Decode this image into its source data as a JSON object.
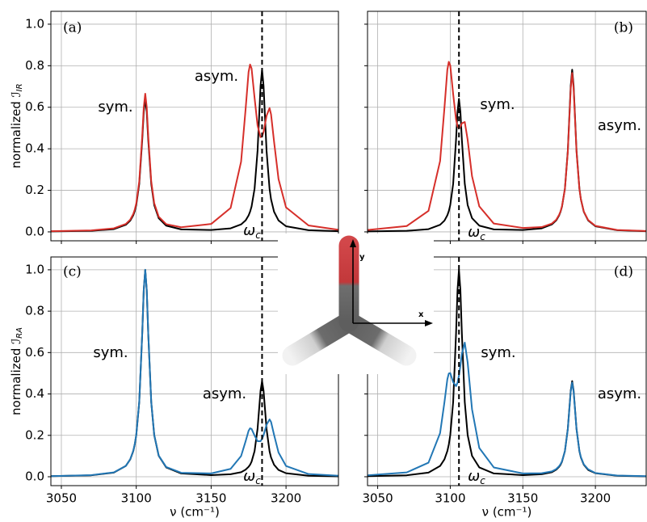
{
  "chart_data": [
    {
      "type": "line",
      "panel_label": "(a)",
      "ylabel": {
        "text": "normalized ℐ",
        "sub": "IR"
      },
      "annotations": [
        {
          "text": "sym."
        },
        {
          "text": "asym."
        },
        {
          "text": "ω",
          "sub": "c"
        }
      ],
      "xlim": [
        3043,
        3235
      ],
      "xticks": [
        3050,
        3100,
        3150,
        3200
      ],
      "xtick_labels": false,
      "ylim": [
        -0.043,
        1.062
      ],
      "yticks": [
        {
          "value": 0,
          "label": "0.0"
        },
        0.2,
        0.4,
        0.6,
        0.8,
        {
          "value": 1,
          "label": "1.0"
        }
      ],
      "ytick_labels": true,
      "grid": true,
      "vline": 3184,
      "x": [
        3043,
        3070,
        3085,
        3093,
        3096,
        3098,
        3099,
        3100,
        3102,
        3104,
        3105,
        3106,
        3107,
        3108,
        3110,
        3112,
        3115,
        3120,
        3130,
        3150,
        3163,
        3170,
        3173,
        3175,
        3176,
        3177,
        3179,
        3181,
        3183,
        3184,
        3185,
        3187,
        3189,
        3190,
        3192,
        3195,
        3200,
        3215,
        3235
      ],
      "series": [
        {
          "color": "#000000",
          "values": [
            0.002,
            0.005,
            0.013,
            0.034,
            0.054,
            0.08,
            0.1,
            0.129,
            0.231,
            0.444,
            0.577,
            0.641,
            0.577,
            0.444,
            0.232,
            0.129,
            0.066,
            0.03,
            0.012,
            0.009,
            0.017,
            0.036,
            0.055,
            0.079,
            0.097,
            0.122,
            0.208,
            0.391,
            0.703,
            0.781,
            0.703,
            0.391,
            0.208,
            0.157,
            0.097,
            0.055,
            0.027,
            0.008,
            0.003
          ]
        },
        {
          "color": "#d62f2a",
          "values": [
            0.003,
            0.007,
            0.017,
            0.038,
            0.059,
            0.086,
            0.107,
            0.137,
            0.243,
            0.462,
            0.599,
            0.665,
            0.6,
            0.462,
            0.244,
            0.138,
            0.073,
            0.037,
            0.022,
            0.038,
            0.115,
            0.338,
            0.59,
            0.77,
            0.806,
            0.787,
            0.645,
            0.512,
            0.456,
            0.459,
            0.481,
            0.559,
            0.596,
            0.566,
            0.435,
            0.254,
            0.118,
            0.031,
            0.01
          ]
        }
      ]
    },
    {
      "type": "line",
      "panel_label": "(b)",
      "annotations": [
        {
          "text": "sym."
        },
        {
          "text": "asym."
        },
        {
          "text": "ω",
          "sub": "c"
        }
      ],
      "xlim": [
        3043,
        3235
      ],
      "xticks": [
        3050,
        3100,
        3150,
        3200
      ],
      "xtick_labels": false,
      "ylim": [
        -0.043,
        1.062
      ],
      "yticks": [
        0,
        0.2,
        0.4,
        0.6,
        0.8,
        1
      ],
      "ytick_labels": false,
      "grid": true,
      "vline": 3106,
      "x": [
        3043,
        3070,
        3085,
        3093,
        3096,
        3098,
        3099,
        3100,
        3102,
        3104,
        3105,
        3106,
        3107,
        3108,
        3110,
        3112,
        3115,
        3120,
        3130,
        3150,
        3163,
        3170,
        3173,
        3175,
        3176,
        3177,
        3179,
        3181,
        3183,
        3184,
        3185,
        3187,
        3189,
        3190,
        3192,
        3195,
        3200,
        3215,
        3235
      ],
      "series": [
        {
          "color": "#000000",
          "values": [
            0.002,
            0.005,
            0.013,
            0.034,
            0.054,
            0.08,
            0.1,
            0.129,
            0.231,
            0.444,
            0.577,
            0.641,
            0.577,
            0.444,
            0.232,
            0.129,
            0.066,
            0.03,
            0.012,
            0.009,
            0.017,
            0.036,
            0.055,
            0.079,
            0.097,
            0.122,
            0.208,
            0.391,
            0.703,
            0.781,
            0.703,
            0.391,
            0.208,
            0.157,
            0.097,
            0.055,
            0.027,
            0.008,
            0.003
          ]
        },
        {
          "color": "#d62f2a",
          "values": [
            0.009,
            0.028,
            0.101,
            0.341,
            0.597,
            0.781,
            0.819,
            0.802,
            0.664,
            0.54,
            0.509,
            0.499,
            0.506,
            0.523,
            0.529,
            0.443,
            0.268,
            0.123,
            0.04,
            0.019,
            0.023,
            0.04,
            0.058,
            0.082,
            0.099,
            0.124,
            0.207,
            0.385,
            0.689,
            0.765,
            0.689,
            0.385,
            0.206,
            0.157,
            0.098,
            0.057,
            0.029,
            0.009,
            0.004
          ]
        }
      ]
    },
    {
      "type": "line",
      "panel_label": "(c)",
      "ylabel": {
        "text": "normalized ℐ",
        "sub": "RA"
      },
      "xlabel": "ν (cm⁻¹)",
      "annotations": [
        {
          "text": "sym."
        },
        {
          "text": "asym."
        },
        {
          "text": "ω",
          "sub": "c"
        }
      ],
      "xlim": [
        3043,
        3235
      ],
      "xticks": [
        3050,
        3100,
        3150,
        3200
      ],
      "xtick_labels": true,
      "ylim": [
        -0.043,
        1.062
      ],
      "yticks": [
        {
          "value": 0,
          "label": "0.0"
        },
        0.2,
        0.4,
        0.6,
        0.8,
        {
          "value": 1,
          "label": "1.0"
        }
      ],
      "ytick_labels": true,
      "grid": true,
      "vline": 3184,
      "x": [
        3043,
        3070,
        3085,
        3093,
        3096,
        3098,
        3099,
        3100,
        3102,
        3104,
        3105,
        3106,
        3107,
        3108,
        3110,
        3112,
        3115,
        3120,
        3130,
        3150,
        3163,
        3170,
        3173,
        3175,
        3176,
        3177,
        3179,
        3181,
        3183,
        3184,
        3185,
        3187,
        3189,
        3190,
        3192,
        3195,
        3200,
        3215,
        3235
      ],
      "series": [
        {
          "color": "#000000",
          "values": [
            0.003,
            0.007,
            0.02,
            0.052,
            0.084,
            0.124,
            0.156,
            0.201,
            0.361,
            0.693,
            0.901,
            1.0,
            0.901,
            0.693,
            0.361,
            0.201,
            0.101,
            0.045,
            0.016,
            0.008,
            0.012,
            0.022,
            0.034,
            0.048,
            0.058,
            0.073,
            0.124,
            0.232,
            0.416,
            0.462,
            0.416,
            0.231,
            0.123,
            0.093,
            0.058,
            0.033,
            0.017,
            0.005,
            0.002
          ]
        },
        {
          "color": "#2277b5",
          "values": [
            0.003,
            0.008,
            0.021,
            0.052,
            0.085,
            0.125,
            0.157,
            0.202,
            0.362,
            0.694,
            0.902,
            1.0,
            0.902,
            0.694,
            0.362,
            0.202,
            0.102,
            0.047,
            0.019,
            0.016,
            0.038,
            0.1,
            0.171,
            0.222,
            0.234,
            0.231,
            0.199,
            0.172,
            0.172,
            0.183,
            0.201,
            0.251,
            0.277,
            0.265,
            0.203,
            0.117,
            0.052,
            0.013,
            0.005
          ]
        }
      ]
    },
    {
      "type": "line",
      "panel_label": "(d)",
      "xlabel": "ν (cm⁻¹)",
      "annotations": [
        {
          "text": "sym."
        },
        {
          "text": "asym."
        },
        {
          "text": "ω",
          "sub": "c"
        }
      ],
      "xlim": [
        3043,
        3235
      ],
      "xticks": [
        3050,
        3100,
        3150,
        3200
      ],
      "xtick_labels": true,
      "ylim": [
        -0.043,
        1.062
      ],
      "yticks": [
        0,
        0.2,
        0.4,
        0.6,
        0.8,
        1
      ],
      "ytick_labels": false,
      "grid": true,
      "vline": 3106,
      "x": [
        3043,
        3070,
        3085,
        3093,
        3096,
        3098,
        3099,
        3100,
        3102,
        3104,
        3105,
        3106,
        3107,
        3108,
        3110,
        3112,
        3115,
        3120,
        3130,
        3150,
        3163,
        3170,
        3173,
        3175,
        3176,
        3177,
        3179,
        3181,
        3183,
        3184,
        3185,
        3187,
        3189,
        3190,
        3192,
        3195,
        3200,
        3215,
        3235
      ],
      "series": [
        {
          "color": "#000000",
          "values": [
            0.003,
            0.007,
            0.02,
            0.052,
            0.084,
            0.124,
            0.156,
            0.201,
            0.361,
            0.693,
            0.901,
            1.0,
            0.901,
            0.693,
            0.361,
            0.201,
            0.101,
            0.045,
            0.016,
            0.008,
            0.012,
            0.022,
            0.034,
            0.048,
            0.058,
            0.073,
            0.124,
            0.232,
            0.416,
            0.462,
            0.416,
            0.231,
            0.123,
            0.093,
            0.058,
            0.033,
            0.017,
            0.005,
            0.002
          ]
        },
        {
          "color": "#2277b5",
          "values": [
            0.007,
            0.021,
            0.068,
            0.211,
            0.36,
            0.471,
            0.499,
            0.501,
            0.457,
            0.438,
            0.454,
            0.489,
            0.538,
            0.594,
            0.648,
            0.552,
            0.326,
            0.139,
            0.045,
            0.016,
            0.017,
            0.026,
            0.037,
            0.051,
            0.061,
            0.075,
            0.124,
            0.23,
            0.41,
            0.455,
            0.41,
            0.23,
            0.124,
            0.095,
            0.06,
            0.036,
            0.018,
            0.006,
            0.003
          ]
        }
      ]
    }
  ],
  "inset": {
    "axes": [
      "x",
      "y"
    ]
  }
}
